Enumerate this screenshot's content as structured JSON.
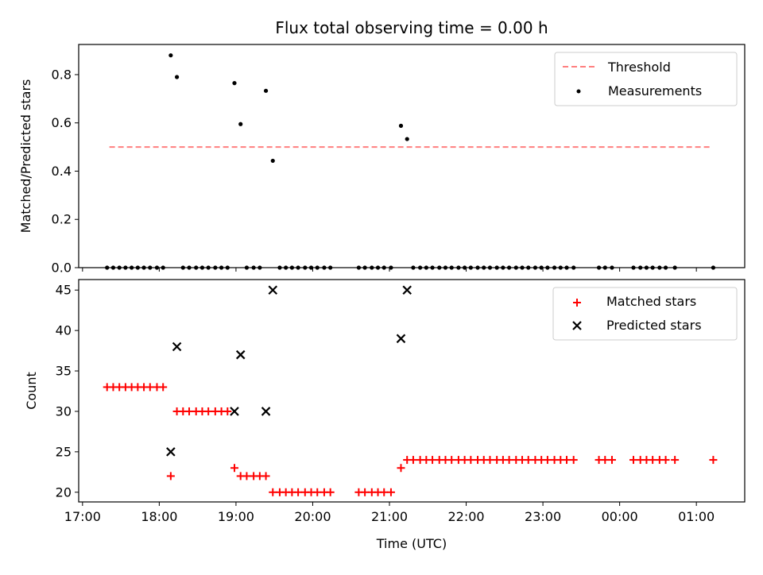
{
  "chart_data": {
    "type": "scatter",
    "title": "Flux total observing time = 0.00 h",
    "xlabel": "Time (UTC)",
    "x_ticks": [
      "17:00",
      "18:00",
      "19:00",
      "20:00",
      "21:00",
      "22:00",
      "23:00",
      "00:00",
      "01:00"
    ],
    "x_tick_hours": [
      17,
      18,
      19,
      20,
      21,
      22,
      23,
      24,
      25
    ],
    "xlim_hours": [
      16.95,
      25.63
    ],
    "panels": [
      {
        "name": "ratio",
        "ylabel": "Matched/Predicted stars",
        "ylim": [
          0,
          0.925
        ],
        "y_ticks": [
          0.0,
          0.2,
          0.4,
          0.6,
          0.8
        ],
        "legend_position": "top-right",
        "threshold": {
          "name": "Threshold",
          "value": 0.5,
          "x_range_hours": [
            17.35,
            25.2
          ],
          "color": "#ff7f7f"
        },
        "series": [
          {
            "name": "Measurements",
            "marker": "dot",
            "color": "#000000",
            "points": [
              [
                18.15,
                0.88
              ],
              [
                18.23,
                0.79
              ],
              [
                18.98,
                0.765
              ],
              [
                19.06,
                0.595
              ],
              [
                19.39,
                0.733
              ],
              [
                19.48,
                0.443
              ],
              [
                21.15,
                0.588
              ],
              [
                21.23,
                0.533
              ],
              [
                17.32,
                0.0
              ],
              [
                17.4,
                0.0
              ],
              [
                17.48,
                0.0
              ],
              [
                17.56,
                0.0
              ],
              [
                17.64,
                0.0
              ],
              [
                17.72,
                0.0
              ],
              [
                17.8,
                0.0
              ],
              [
                17.88,
                0.0
              ],
              [
                17.97,
                0.0
              ],
              [
                18.05,
                0.0
              ],
              [
                18.31,
                0.0
              ],
              [
                18.39,
                0.0
              ],
              [
                18.48,
                0.0
              ],
              [
                18.56,
                0.0
              ],
              [
                18.64,
                0.0
              ],
              [
                18.73,
                0.0
              ],
              [
                18.81,
                0.0
              ],
              [
                18.89,
                0.0
              ],
              [
                19.14,
                0.0
              ],
              [
                19.23,
                0.0
              ],
              [
                19.31,
                0.0
              ],
              [
                19.57,
                0.0
              ],
              [
                19.65,
                0.0
              ],
              [
                19.73,
                0.0
              ],
              [
                19.81,
                0.0
              ],
              [
                19.9,
                0.0
              ],
              [
                19.98,
                0.0
              ],
              [
                20.06,
                0.0
              ],
              [
                20.15,
                0.0
              ],
              [
                20.23,
                0.0
              ],
              [
                20.6,
                0.0
              ],
              [
                20.68,
                0.0
              ],
              [
                20.77,
                0.0
              ],
              [
                20.85,
                0.0
              ],
              [
                20.93,
                0.0
              ],
              [
                21.02,
                0.0
              ],
              [
                21.31,
                0.0
              ],
              [
                21.4,
                0.0
              ],
              [
                21.48,
                0.0
              ],
              [
                21.56,
                0.0
              ],
              [
                21.65,
                0.0
              ],
              [
                21.73,
                0.0
              ],
              [
                21.81,
                0.0
              ],
              [
                21.9,
                0.0
              ],
              [
                21.98,
                0.0
              ],
              [
                22.06,
                0.0
              ],
              [
                22.15,
                0.0
              ],
              [
                22.23,
                0.0
              ],
              [
                22.31,
                0.0
              ],
              [
                22.4,
                0.0
              ],
              [
                22.48,
                0.0
              ],
              [
                22.56,
                0.0
              ],
              [
                22.65,
                0.0
              ],
              [
                22.73,
                0.0
              ],
              [
                22.81,
                0.0
              ],
              [
                22.9,
                0.0
              ],
              [
                22.98,
                0.0
              ],
              [
                23.06,
                0.0
              ],
              [
                23.15,
                0.0
              ],
              [
                23.23,
                0.0
              ],
              [
                23.31,
                0.0
              ],
              [
                23.4,
                0.0
              ],
              [
                23.73,
                0.0
              ],
              [
                23.81,
                0.0
              ],
              [
                23.9,
                0.0
              ],
              [
                24.18,
                0.0
              ],
              [
                24.27,
                0.0
              ],
              [
                24.35,
                0.0
              ],
              [
                24.43,
                0.0
              ],
              [
                24.52,
                0.0
              ],
              [
                24.6,
                0.0
              ],
              [
                24.72,
                0.0
              ],
              [
                25.22,
                0.0
              ]
            ]
          }
        ]
      },
      {
        "name": "counts",
        "ylabel": "Count",
        "ylim": [
          18.8,
          46.3
        ],
        "y_ticks": [
          20,
          25,
          30,
          35,
          40,
          45
        ],
        "legend_position": "top-right",
        "series": [
          {
            "name": "Matched stars",
            "marker": "plus",
            "color": "#ff0000",
            "points": [
              [
                17.32,
                33
              ],
              [
                17.4,
                33
              ],
              [
                17.48,
                33
              ],
              [
                17.56,
                33
              ],
              [
                17.64,
                33
              ],
              [
                17.72,
                33
              ],
              [
                17.8,
                33
              ],
              [
                17.88,
                33
              ],
              [
                17.97,
                33
              ],
              [
                18.05,
                33
              ],
              [
                18.15,
                22
              ],
              [
                18.23,
                30
              ],
              [
                18.31,
                30
              ],
              [
                18.39,
                30
              ],
              [
                18.48,
                30
              ],
              [
                18.56,
                30
              ],
              [
                18.64,
                30
              ],
              [
                18.73,
                30
              ],
              [
                18.81,
                30
              ],
              [
                18.89,
                30
              ],
              [
                18.98,
                23
              ],
              [
                19.06,
                22
              ],
              [
                19.14,
                22
              ],
              [
                19.23,
                22
              ],
              [
                19.31,
                22
              ],
              [
                19.39,
                22
              ],
              [
                19.48,
                20
              ],
              [
                19.57,
                20
              ],
              [
                19.65,
                20
              ],
              [
                19.73,
                20
              ],
              [
                19.81,
                20
              ],
              [
                19.9,
                20
              ],
              [
                19.98,
                20
              ],
              [
                20.06,
                20
              ],
              [
                20.15,
                20
              ],
              [
                20.23,
                20
              ],
              [
                20.6,
                20
              ],
              [
                20.68,
                20
              ],
              [
                20.77,
                20
              ],
              [
                20.85,
                20
              ],
              [
                20.93,
                20
              ],
              [
                21.02,
                20
              ],
              [
                21.15,
                23
              ],
              [
                21.23,
                24
              ],
              [
                21.31,
                24
              ],
              [
                21.4,
                24
              ],
              [
                21.48,
                24
              ],
              [
                21.56,
                24
              ],
              [
                21.65,
                24
              ],
              [
                21.73,
                24
              ],
              [
                21.81,
                24
              ],
              [
                21.9,
                24
              ],
              [
                21.98,
                24
              ],
              [
                22.06,
                24
              ],
              [
                22.15,
                24
              ],
              [
                22.23,
                24
              ],
              [
                22.31,
                24
              ],
              [
                22.4,
                24
              ],
              [
                22.48,
                24
              ],
              [
                22.56,
                24
              ],
              [
                22.65,
                24
              ],
              [
                22.73,
                24
              ],
              [
                22.81,
                24
              ],
              [
                22.9,
                24
              ],
              [
                22.98,
                24
              ],
              [
                23.06,
                24
              ],
              [
                23.15,
                24
              ],
              [
                23.23,
                24
              ],
              [
                23.31,
                24
              ],
              [
                23.4,
                24
              ],
              [
                23.73,
                24
              ],
              [
                23.81,
                24
              ],
              [
                23.9,
                24
              ],
              [
                24.18,
                24
              ],
              [
                24.27,
                24
              ],
              [
                24.35,
                24
              ],
              [
                24.43,
                24
              ],
              [
                24.52,
                24
              ],
              [
                24.6,
                24
              ],
              [
                24.72,
                24
              ],
              [
                25.22,
                24
              ]
            ]
          },
          {
            "name": "Predicted stars",
            "marker": "x",
            "color": "#000000",
            "points": [
              [
                18.15,
                25
              ],
              [
                18.23,
                38
              ],
              [
                18.98,
                30
              ],
              [
                19.06,
                37
              ],
              [
                19.39,
                30
              ],
              [
                19.48,
                45
              ],
              [
                21.15,
                39
              ],
              [
                21.23,
                45
              ]
            ]
          }
        ]
      }
    ]
  }
}
